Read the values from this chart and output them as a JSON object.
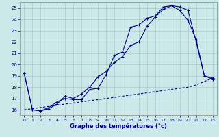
{
  "xlabel": "Graphe des températures (°c)",
  "xlim": [
    -0.5,
    23.5
  ],
  "ylim": [
    15.5,
    25.5
  ],
  "yticks": [
    16,
    17,
    18,
    19,
    20,
    21,
    22,
    23,
    24,
    25
  ],
  "xticks": [
    0,
    1,
    2,
    3,
    4,
    5,
    6,
    7,
    8,
    9,
    10,
    11,
    12,
    13,
    14,
    15,
    16,
    17,
    18,
    19,
    20,
    21,
    22,
    23
  ],
  "bg_color": "#cce8e8",
  "grid_color": "#aacccc",
  "line_color": "#00008b",
  "line1_x": [
    0,
    1,
    2,
    3,
    4,
    5,
    6,
    7,
    8,
    9,
    10,
    11,
    12,
    13,
    14,
    15,
    16,
    17,
    18,
    19,
    20,
    21,
    22,
    23
  ],
  "line1_y": [
    19.2,
    16.0,
    15.9,
    16.2,
    16.7,
    17.0,
    16.9,
    16.9,
    17.8,
    17.9,
    19.1,
    20.8,
    21.1,
    23.3,
    23.5,
    24.1,
    24.3,
    25.1,
    25.2,
    24.8,
    23.9,
    22.2,
    19.0,
    18.8
  ],
  "line2_x": [
    0,
    1,
    2,
    3,
    4,
    5,
    6,
    7,
    8,
    9,
    10,
    11,
    12,
    13,
    14,
    15,
    16,
    17,
    18,
    19,
    20,
    21,
    22,
    23
  ],
  "line2_y": [
    19.2,
    16.0,
    15.9,
    16.1,
    16.5,
    17.2,
    17.0,
    17.4,
    18.0,
    18.9,
    19.4,
    20.2,
    20.7,
    21.7,
    22.0,
    23.4,
    24.2,
    24.9,
    25.2,
    25.1,
    24.8,
    22.0,
    19.0,
    18.7
  ],
  "line3_x": [
    0,
    1,
    2,
    3,
    4,
    5,
    6,
    7,
    8,
    9,
    10,
    11,
    12,
    13,
    14,
    15,
    16,
    17,
    18,
    19,
    20,
    21,
    22,
    23
  ],
  "line3_y": [
    16.0,
    16.1,
    16.2,
    16.3,
    16.4,
    16.5,
    16.6,
    16.7,
    16.8,
    16.9,
    17.0,
    17.1,
    17.2,
    17.3,
    17.4,
    17.5,
    17.6,
    17.7,
    17.8,
    17.9,
    18.0,
    18.2,
    18.5,
    18.8
  ]
}
